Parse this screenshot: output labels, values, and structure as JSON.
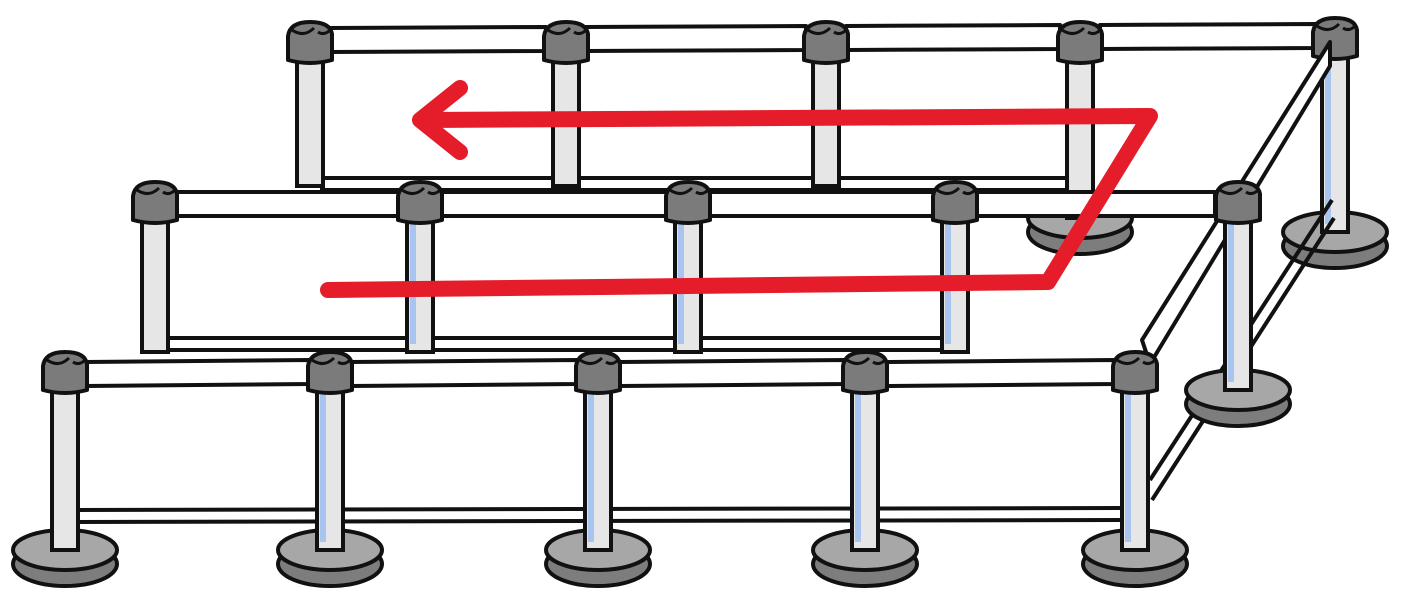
{
  "illustration": {
    "subject": "queue-barrier-stanchions",
    "colors": {
      "background": "#ffffff",
      "outline": "#111111",
      "post_fill": "#e6e6e6",
      "post_highlight": "#a9c4ee",
      "cap_fill": "#7b7b7b",
      "base_fill": "#7d7d7d",
      "base_rim": "#a7a7a7",
      "belt_fill": "#ffffff",
      "path_arrow": "#e51d2a"
    },
    "path_arrow": {
      "icon": "queue-direction-arrow-icon",
      "direction": "zigzag-left"
    }
  }
}
